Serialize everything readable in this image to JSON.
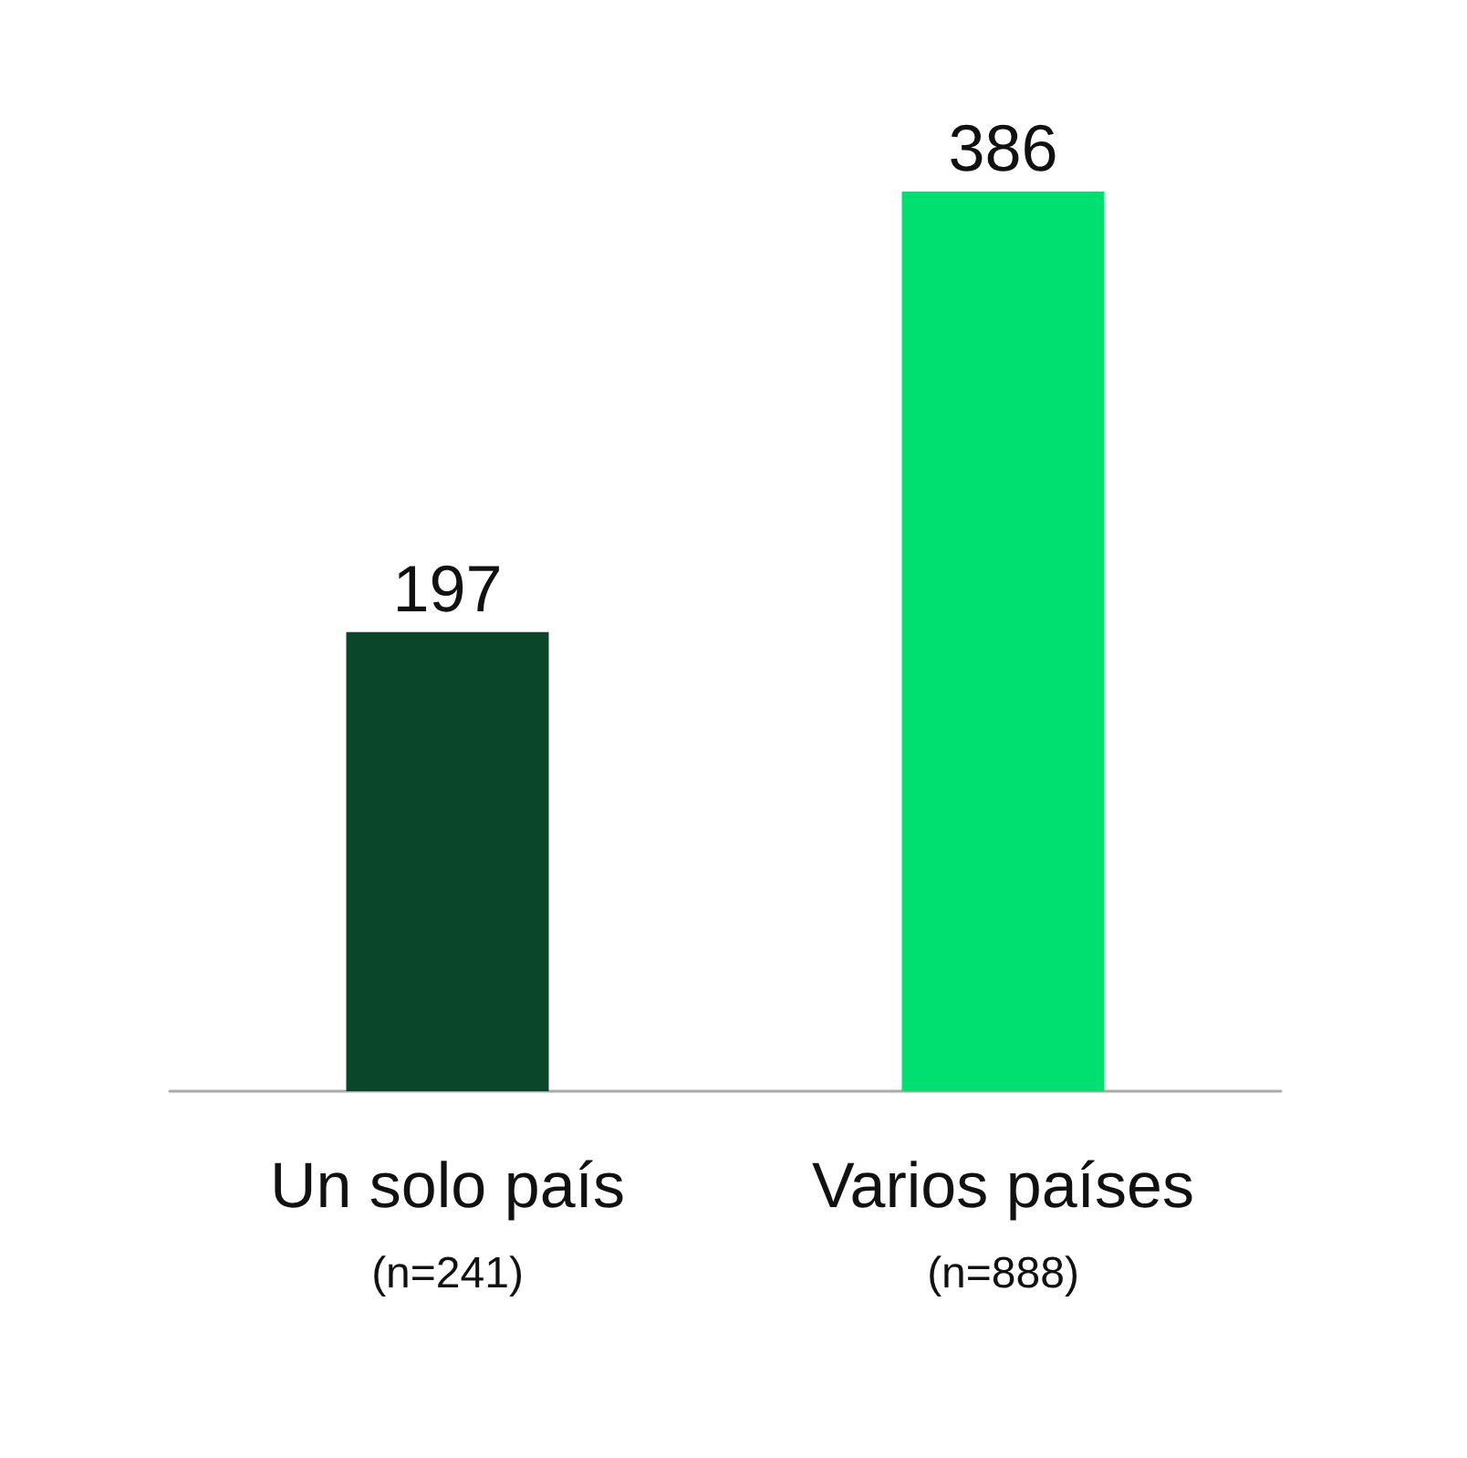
{
  "chart_data": {
    "type": "bar",
    "categories": [
      "Un solo país\n(n=241)",
      "Varios países\n(n=888)"
    ],
    "values": [
      197,
      386
    ],
    "colors": [
      "#0a4629",
      "#00e070"
    ],
    "data_labels": true
  }
}
